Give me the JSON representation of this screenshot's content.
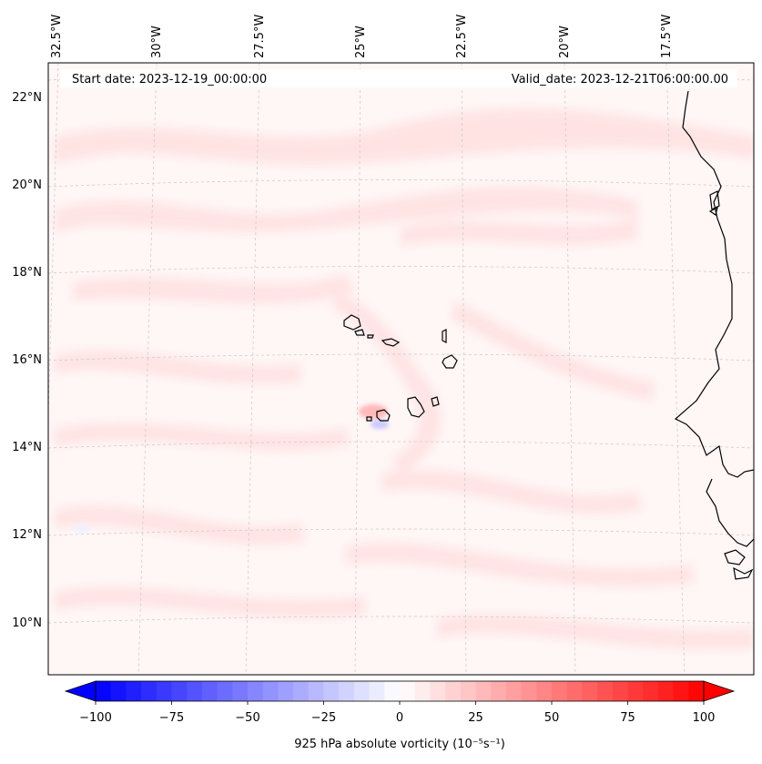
{
  "map": {
    "start_label": "Start date: 2023-12-19_00:00:00",
    "valid_label": "Valid_date: 2023-12-21T06:00:00.00",
    "lon_labels": [
      "32.5°W",
      "30°W",
      "27.5°W",
      "25°W",
      "22.5°W",
      "20°W",
      "17.5°W"
    ],
    "lat_labels": [
      "22°N",
      "20°N",
      "18°N",
      "16°N",
      "14°N",
      "12°N",
      "10°N"
    ],
    "field": "925 hPa absolute vorticity",
    "gridlines": true,
    "coastline_color": "#000000"
  },
  "colorbar": {
    "label": "925 hPa absolute vorticity (10⁻⁵s⁻¹)",
    "tick_labels": [
      "−100",
      "−75",
      "−50",
      "−25",
      "0",
      "25",
      "50",
      "75",
      "100"
    ],
    "min": -100,
    "max": 100,
    "levels": 40,
    "low_color": "#0000ff",
    "mid_color": "#ffffff",
    "high_color": "#ff0000",
    "extend": "both"
  }
}
